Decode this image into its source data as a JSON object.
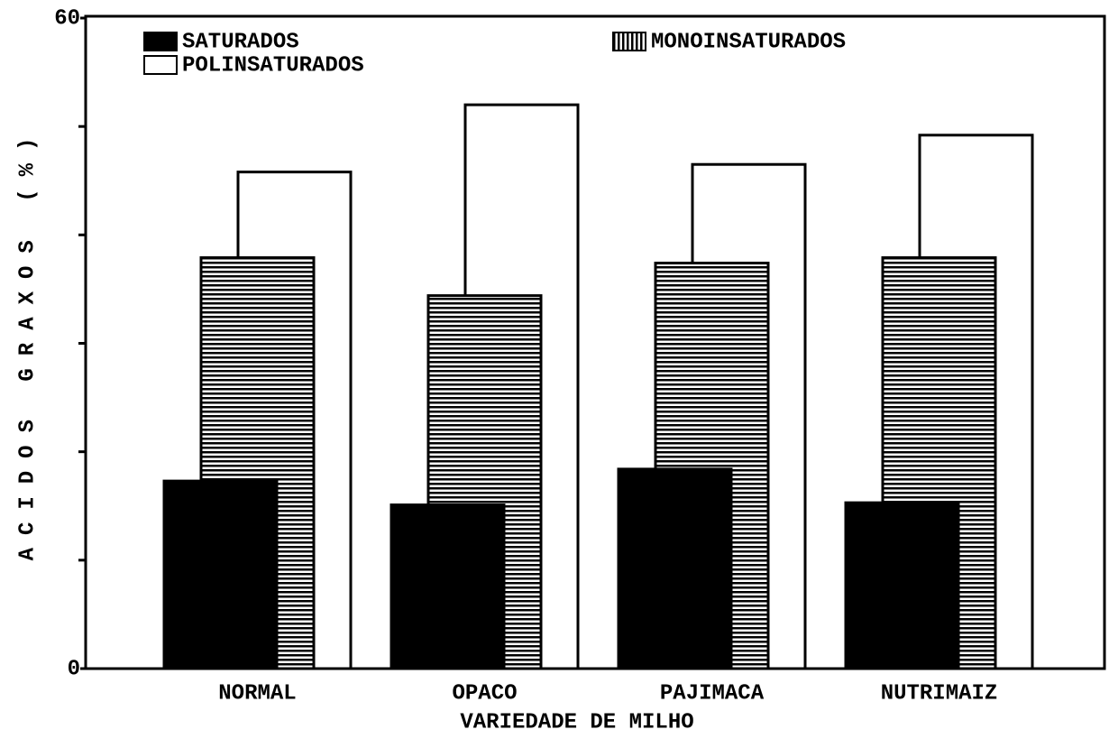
{
  "chart_data": {
    "type": "bar",
    "x_label": "VARIEDADE DE MILHO",
    "y_label": "ACIDOS GRAXOS (%)",
    "categories": [
      "NORMAL",
      "OPACO",
      "PAJIMACA",
      "NUTRIMAIZ"
    ],
    "series": [
      {
        "name": "SATURADOS",
        "color": "#000000",
        "pattern": "solid",
        "values": [
          17.3,
          15.1,
          18.4,
          15.3
        ]
      },
      {
        "name": "MONOINSATURADOS",
        "color": "#000000",
        "pattern": "horizontal-lines",
        "values": [
          37.9,
          34.4,
          37.4,
          37.9
        ]
      },
      {
        "name": "POLINSATURADOS",
        "color": "#ffffff",
        "pattern": "empty",
        "values": [
          45.8,
          52.0,
          46.5,
          49.2
        ]
      }
    ],
    "ylim": [
      0,
      60
    ],
    "yticks": [
      0,
      60
    ],
    "minor_yticks": [
      10,
      20,
      30,
      40,
      50
    ],
    "grid": false
  }
}
